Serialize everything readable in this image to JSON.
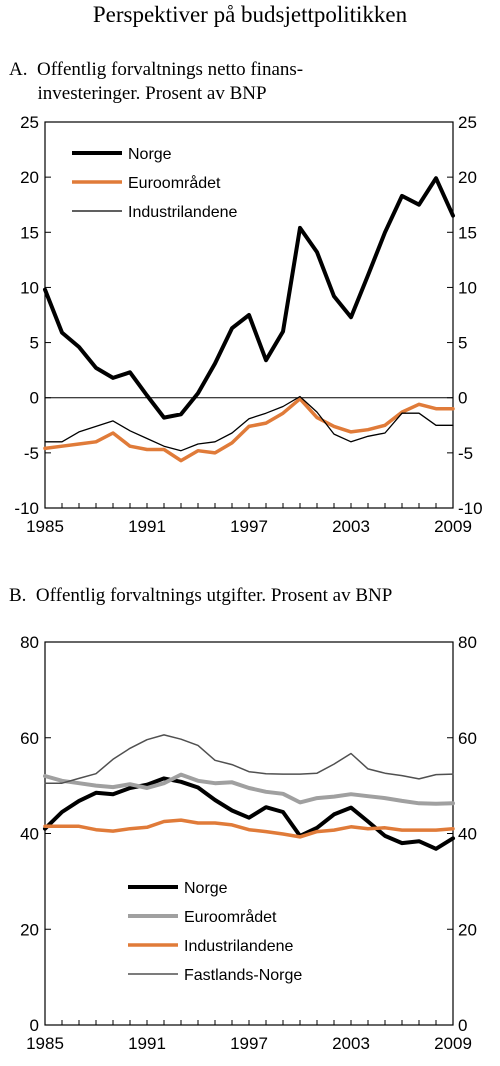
{
  "title": "Perspektiver på budsjettpolitikken",
  "charts": [
    {
      "subtitle_line1": "A.  Offentlig forvaltnings netto finans-",
      "subtitle_line2": "      investeringer. Prosent av BNP"
    },
    {
      "subtitle_line1": "B.  Offentlig forvaltnings utgifter. Prosent av BNP"
    }
  ],
  "chart_data": [
    {
      "type": "line",
      "title": "A. Offentlig forvaltnings netto finansinvesteringer. Prosent av BNP",
      "x": [
        1985,
        1986,
        1987,
        1988,
        1989,
        1990,
        1991,
        1992,
        1993,
        1994,
        1995,
        1996,
        1997,
        1998,
        1999,
        2000,
        2001,
        2002,
        2003,
        2004,
        2005,
        2006,
        2007,
        2008,
        2009
      ],
      "xticks": [
        1985,
        1991,
        1997,
        2003,
        2009
      ],
      "ylim": [
        -10,
        25
      ],
      "yticks": [
        -10,
        -5,
        0,
        5,
        10,
        15,
        20,
        25
      ],
      "grid": false,
      "legend_position": "top-left",
      "series": [
        {
          "name": "Norge",
          "color": "#000000",
          "width": 4,
          "values": [
            9.8,
            5.9,
            4.6,
            2.7,
            1.8,
            2.3,
            0.2,
            -1.8,
            -1.5,
            0.4,
            3.1,
            6.3,
            7.5,
            3.4,
            6.0,
            15.4,
            13.2,
            9.2,
            7.3,
            11.1,
            15.0,
            18.3,
            17.5,
            19.9,
            16.5
          ]
        },
        {
          "name": "Euroområdet",
          "color": "#e07b39",
          "width": 3.5,
          "values": [
            -4.6,
            -4.4,
            -4.2,
            -4.0,
            -3.2,
            -4.4,
            -4.7,
            -4.7,
            -5.7,
            -4.8,
            -5.0,
            -4.1,
            -2.6,
            -2.3,
            -1.4,
            -0.1,
            -1.8,
            -2.6,
            -3.1,
            -2.9,
            -2.5,
            -1.3,
            -0.6,
            -1.0,
            -1.0
          ]
        },
        {
          "name": "Industrilandene",
          "color": "#000000",
          "width": 1.3,
          "values": [
            -4.0,
            -4.0,
            -3.1,
            -2.6,
            -2.1,
            -3.0,
            -3.7,
            -4.4,
            -4.8,
            -4.2,
            -4.0,
            -3.2,
            -1.9,
            -1.4,
            -0.8,
            0.1,
            -1.3,
            -3.3,
            -4.0,
            -3.5,
            -3.2,
            -1.4,
            -1.4,
            -2.5,
            -2.5
          ]
        }
      ]
    },
    {
      "type": "line",
      "title": "B. Offentlig forvaltnings utgifter. Prosent av BNP",
      "x": [
        1985,
        1986,
        1987,
        1988,
        1989,
        1990,
        1991,
        1992,
        1993,
        1994,
        1995,
        1996,
        1997,
        1998,
        1999,
        2000,
        2001,
        2002,
        2003,
        2004,
        2005,
        2006,
        2007,
        2008,
        2009
      ],
      "xticks": [
        1985,
        1991,
        1997,
        2003,
        2009
      ],
      "ylim": [
        0,
        80
      ],
      "yticks": [
        0,
        20,
        40,
        60,
        80
      ],
      "grid": false,
      "legend_position": "bottom-left",
      "series": [
        {
          "name": "Norge",
          "color": "#000000",
          "width": 4,
          "values": [
            41.0,
            44.5,
            46.8,
            48.5,
            48.2,
            49.5,
            50.2,
            51.5,
            50.8,
            49.6,
            47.0,
            44.8,
            43.3,
            45.5,
            44.5,
            39.5,
            41.2,
            44.0,
            45.4,
            42.5,
            39.5,
            38.0,
            38.4,
            36.8,
            39.0
          ]
        },
        {
          "name": "Euroområdet",
          "color": "#a0a0a0",
          "width": 4,
          "values": [
            52.0,
            51.0,
            50.5,
            50.0,
            49.7,
            50.3,
            49.5,
            50.5,
            52.3,
            51.0,
            50.5,
            50.7,
            49.5,
            48.7,
            48.3,
            46.5,
            47.4,
            47.7,
            48.2,
            47.8,
            47.4,
            46.8,
            46.3,
            46.2,
            46.3
          ]
        },
        {
          "name": "Industrilandene",
          "color": "#e07b39",
          "width": 3.5,
          "values": [
            41.5,
            41.5,
            41.5,
            40.8,
            40.5,
            41.0,
            41.3,
            42.5,
            42.8,
            42.2,
            42.2,
            41.8,
            40.8,
            40.4,
            39.9,
            39.3,
            40.4,
            40.7,
            41.4,
            41.0,
            41.2,
            40.7,
            40.7,
            40.7,
            41.0
          ]
        },
        {
          "name": "Fastlands-Norge",
          "color": "#505050",
          "width": 1.5,
          "values": [
            50.5,
            50.5,
            51.5,
            52.5,
            55.5,
            57.8,
            59.6,
            60.6,
            59.7,
            58.4,
            55.3,
            54.4,
            52.9,
            52.5,
            52.4,
            52.4,
            52.6,
            54.5,
            56.7,
            53.5,
            52.6,
            52.1,
            51.4,
            52.3,
            52.4
          ]
        }
      ]
    }
  ]
}
